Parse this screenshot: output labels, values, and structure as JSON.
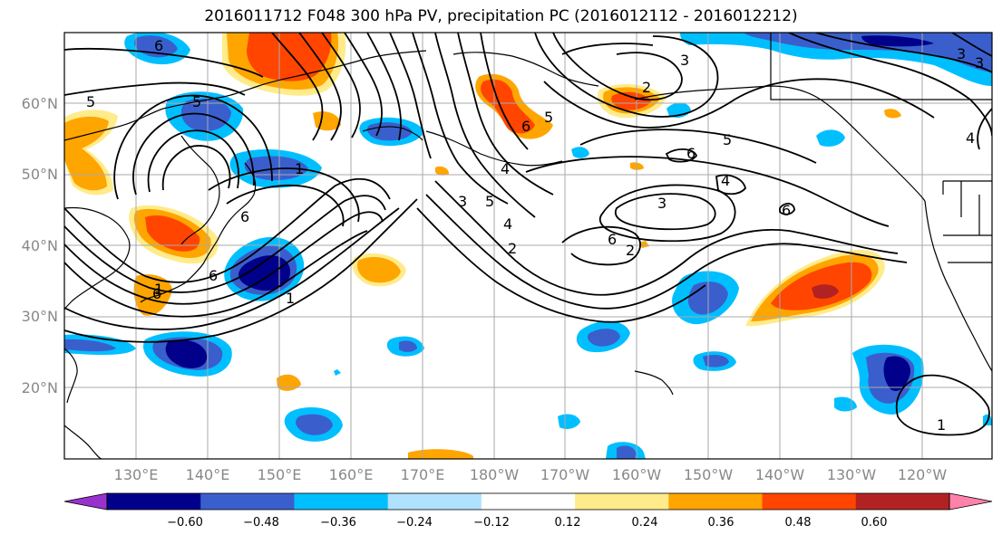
{
  "title": "2016011712 F048 300 hPa PV, precipitation PC (2016012112 - 2016012212)",
  "map": {
    "lon_labels": [
      "130°E",
      "140°E",
      "150°E",
      "160°E",
      "170°E",
      "180°W",
      "170°W",
      "160°W",
      "150°W",
      "140°W",
      "130°W",
      "120°W"
    ],
    "lat_labels": [
      "60°N",
      "50°N",
      "40°N",
      "30°N",
      "20°N"
    ],
    "lon_range": [
      120,
      250
    ],
    "lat_range": [
      10,
      70
    ],
    "contour_labels": [
      "6",
      "5",
      "1",
      "6",
      "6",
      "6",
      "3",
      "2",
      "5",
      "4",
      "5",
      "3",
      "3",
      "2",
      "1",
      "5",
      "4",
      "5",
      "6",
      "4",
      "3",
      "6",
      "2",
      "6",
      "1",
      "6",
      "4",
      "3",
      "1"
    ],
    "background": "#ffffff",
    "grid_color": "#aaaaaa",
    "coast_color": "#000000"
  },
  "colorbar": {
    "ticks": [
      "−0.60",
      "−0.48",
      "−0.36",
      "−0.24",
      "−0.12",
      "0.12",
      "0.24",
      "0.36",
      "0.48",
      "0.60"
    ],
    "colors": [
      "#9932cc",
      "#00008b",
      "#3a5fcd",
      "#00bfff",
      "#b0e2ff",
      "#ffffff",
      "#ffeb8a",
      "#ffa500",
      "#ff4500",
      "#b22222",
      "#ff82ab"
    ]
  }
}
